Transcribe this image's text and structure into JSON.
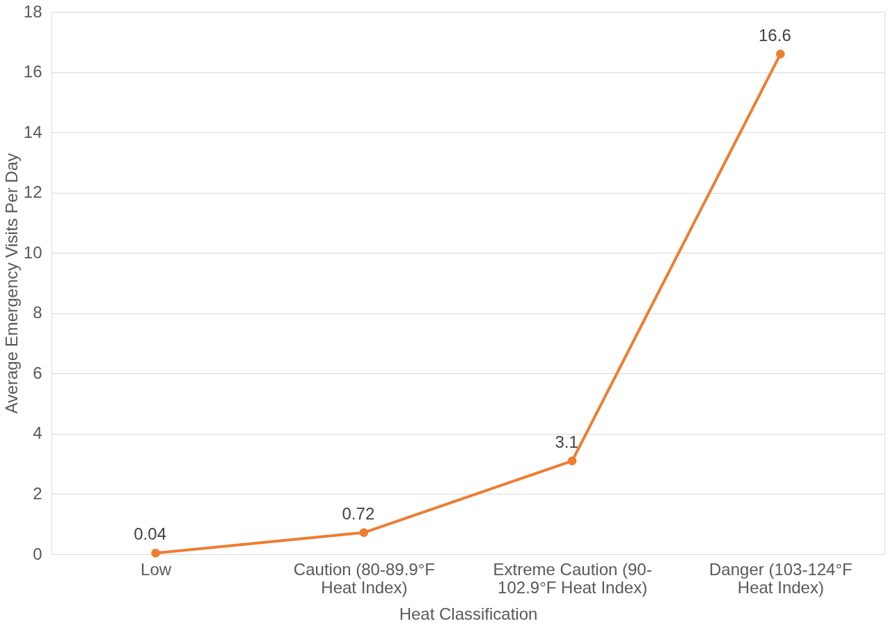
{
  "chart_data": {
    "type": "line",
    "xlabel": "Heat Classification",
    "ylabel": "Average Emergency Visits Per Day",
    "categories": [
      "Low",
      "Caution (80-89.9°F Heat Index)",
      "Extreme Caution (90-102.9°F Heat Index)",
      "Danger (103-124°F Heat Index)"
    ],
    "series": [
      {
        "color": "#ed7d31",
        "values": [
          0.04,
          0.72,
          3.1,
          16.6
        ]
      }
    ],
    "ylim": [
      0,
      18
    ],
    "yticks": [
      0,
      2,
      4,
      6,
      8,
      10,
      12,
      14,
      16,
      18
    ],
    "grid": "y",
    "data_labels": true,
    "marker": "circle",
    "line_style": "solid",
    "legend": false
  }
}
